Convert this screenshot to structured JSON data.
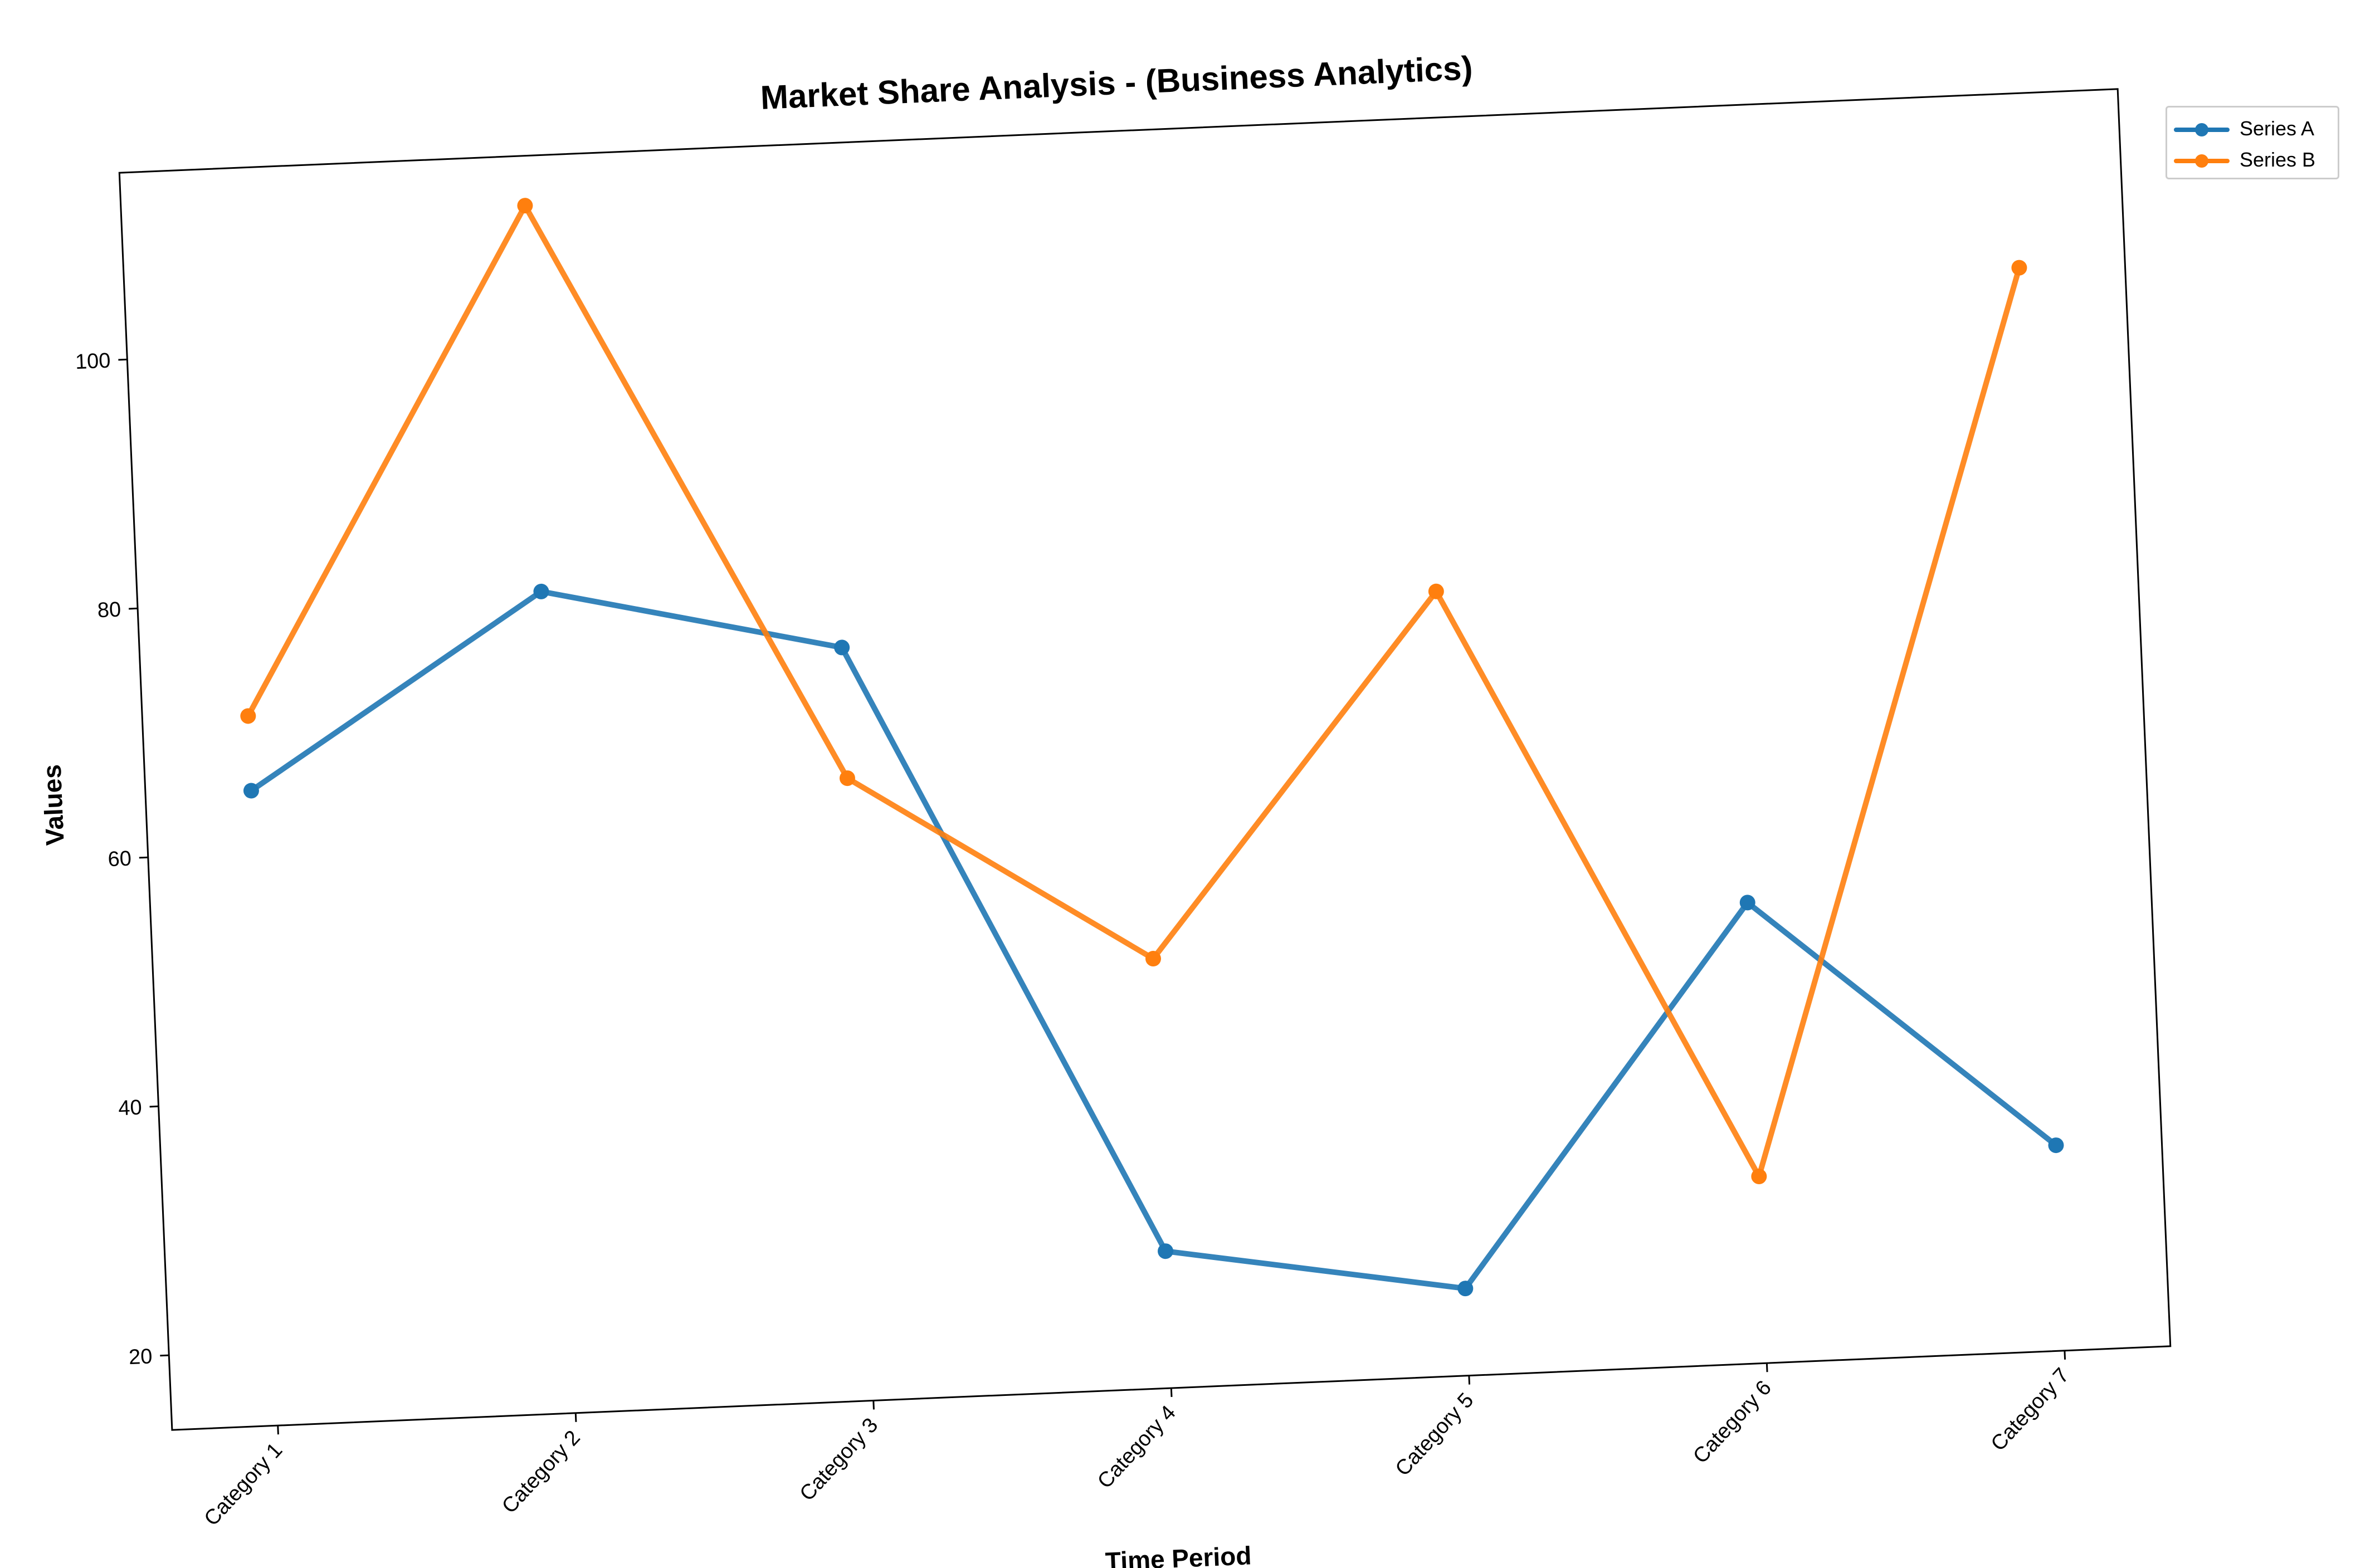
{
  "chart_data": {
    "type": "line",
    "title": "Market Share Analysis - (Business Analytics)",
    "xlabel": "Time Period",
    "ylabel": "Values",
    "categories": [
      "Category 1",
      "Category 2",
      "Category 3",
      "Category 4",
      "Category 5",
      "Category 6",
      "Category 7"
    ],
    "series": [
      {
        "name": "Series A",
        "color": "#1f77b4",
        "values": [
          65,
          80,
          74.5,
          25,
          21,
          51,
          30.5
        ]
      },
      {
        "name": "Series B",
        "color": "#ff7f0e",
        "values": [
          71,
          111,
          64,
          48.5,
          77,
          29,
          101
        ]
      }
    ],
    "ylim": [
      14,
      115
    ],
    "yticks": [
      20,
      40,
      60,
      80,
      100
    ],
    "grid": false,
    "legend": "outside-top-right"
  }
}
